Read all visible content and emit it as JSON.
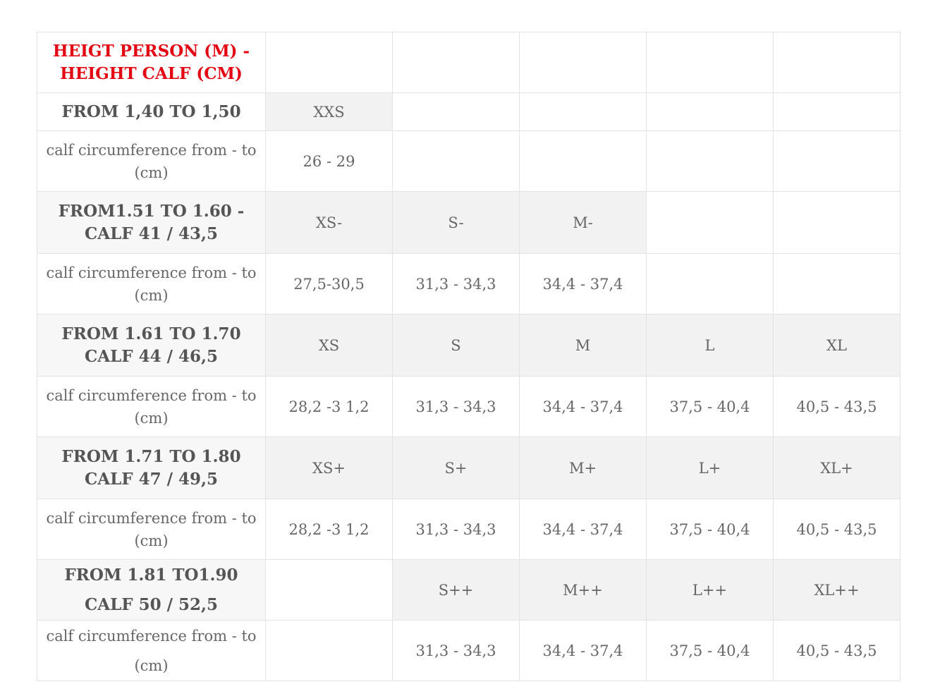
{
  "header": {
    "title": "HEIGT PERSON (M) - HEIGHT CALF (CM)"
  },
  "rows": [
    {
      "label": "FROM 1,40 TO 1,50",
      "sizes": [
        "XXS",
        "",
        "",
        "",
        ""
      ],
      "circ_label": "calf circumference from - to (cm)",
      "circ": [
        "26 - 29",
        "",
        "",
        "",
        ""
      ]
    },
    {
      "label": "FROM1.51 TO 1.60 - CALF 41 / 43,5",
      "sizes": [
        "XS-",
        "S-",
        "M-",
        "",
        ""
      ],
      "circ_label": "calf circumference from - to (cm)",
      "circ": [
        "27,5-30,5",
        "31,3 - 34,3",
        "34,4 - 37,4",
        "",
        ""
      ]
    },
    {
      "label": "FROM 1.61 TO 1.70 CALF 44 / 46,5",
      "sizes": [
        "XS",
        "S",
        "M",
        "L",
        "XL"
      ],
      "circ_label": "calf circumference from - to (cm)",
      "circ": [
        "28,2 -3 1,2",
        "31,3 - 34,3",
        "34,4 - 37,4",
        "37,5 - 40,4",
        "40,5 - 43,5"
      ]
    },
    {
      "label": "FROM 1.71 TO 1.80 CALF 47 / 49,5",
      "sizes": [
        "XS+",
        "S+",
        "M+",
        "L+",
        "XL+"
      ],
      "circ_label": "calf circumference from - to (cm)",
      "circ": [
        "28,2 -3 1,2",
        "31,3 - 34,3",
        "34,4 - 37,4",
        "37,5 - 40,4",
        "40,5 - 43,5"
      ]
    },
    {
      "label": "FROM 1.81 TO1.90 CALF 50 / 52,5",
      "sizes": [
        "",
        "S++",
        "M++",
        "L++",
        "XL++"
      ],
      "circ_label": "calf circumference from - to (cm)",
      "circ": [
        "",
        "31,3 - 34,3",
        "34,4 - 37,4",
        "37,5 - 40,4",
        "40,5 - 43,5"
      ]
    }
  ]
}
